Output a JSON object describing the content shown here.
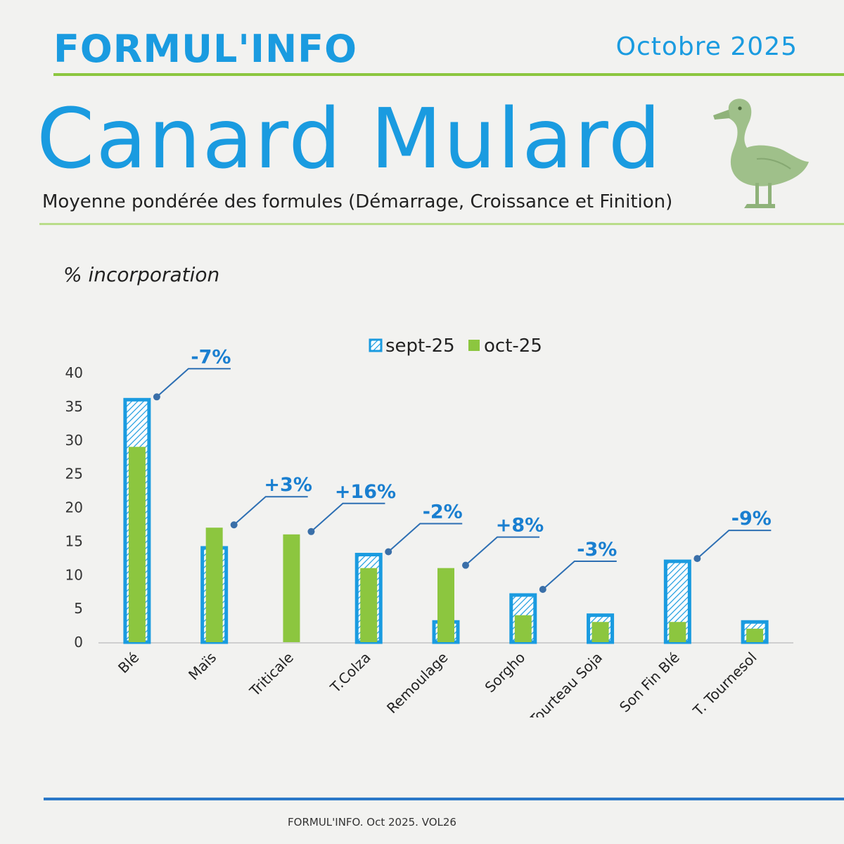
{
  "header": {
    "brand": "FORMUL'INFO",
    "date": "Octobre 2025",
    "title": "Canard Mulard",
    "subtitle": "Moyenne pondérée des formules (Démarrage, Croissance et Finition)"
  },
  "footer": {
    "text": "FORMUL'INFO. Oct 2025. VOL26"
  },
  "colors": {
    "sept": "#1a9be0",
    "oct": "#8cc63f",
    "annotation": "#1a7fd0"
  },
  "icons": {
    "duck": "duck-icon"
  },
  "chart_data": {
    "type": "bar",
    "ylabel": "% incorporation",
    "ylim": [
      0,
      40
    ],
    "yticks": [
      "0",
      "5",
      "10",
      "15",
      "20",
      "25",
      "30",
      "35",
      "40"
    ],
    "categories": [
      "Blé",
      "Maïs",
      "Triticale",
      "T.Colza",
      "Remoulage",
      "Sorgho",
      "Tourteau Soja",
      "Son Fin Blé",
      "T. Tournesol"
    ],
    "series": [
      {
        "name": "sept-25",
        "values": [
          36,
          14,
          0,
          13,
          3,
          7,
          4,
          12,
          3
        ]
      },
      {
        "name": "oct-25",
        "values": [
          29,
          17,
          16,
          11,
          11,
          4,
          3,
          3,
          2
        ]
      }
    ],
    "annotations": [
      "-7%",
      "+3%",
      "+16%",
      "-2%",
      "+8%",
      "-3%",
      "",
      "-9%",
      ""
    ],
    "legend": "top",
    "grid": false
  }
}
